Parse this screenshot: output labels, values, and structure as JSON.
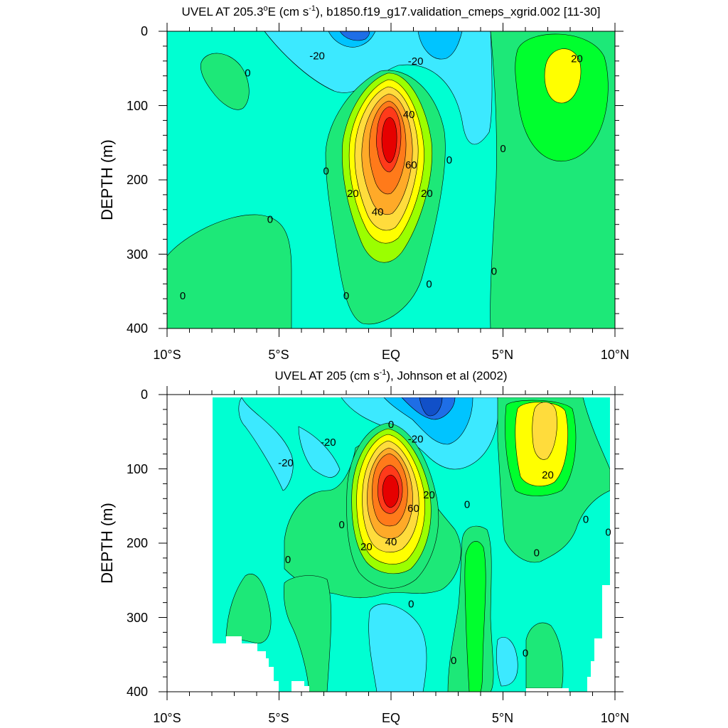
{
  "chart_data": [
    {
      "type": "contour",
      "title": "UVEL AT 205.3°E (cm s-1), b1850.f19_g17.validation_cmeps_xgrid.002 [11-30]",
      "title_parts": {
        "pre": "UVEL AT 205.3",
        "sup1": "o",
        "mid": "E (cm s",
        "sup2": "-1",
        "post": "), b1850.f19_g17.validation_cmeps_xgrid.002 [11-30]"
      },
      "ylabel": "DEPTH (m)",
      "xlabel": "",
      "xlim": [
        -10,
        10
      ],
      "ylim": [
        400,
        0
      ],
      "y_ticks": [
        "0",
        "100",
        "200",
        "300",
        "400"
      ],
      "x_ticks": [
        "10°S",
        "5°S",
        "EQ",
        "5°N",
        "10°N"
      ],
      "contour_labels": [
        {
          "text": "-20",
          "lon": -3.3,
          "depth": 33
        },
        {
          "text": "-20",
          "lon": 1.1,
          "depth": 40
        },
        {
          "text": "0",
          "lon": -6.4,
          "depth": 56
        },
        {
          "text": "20",
          "lon": 8.3,
          "depth": 37
        },
        {
          "text": "40",
          "lon": 0.8,
          "depth": 112
        },
        {
          "text": "60",
          "lon": 0.9,
          "depth": 180
        },
        {
          "text": "0",
          "lon": 5.0,
          "depth": 158
        },
        {
          "text": "0",
          "lon": 2.6,
          "depth": 173
        },
        {
          "text": "0",
          "lon": -2.9,
          "depth": 188
        },
        {
          "text": "20",
          "lon": -1.7,
          "depth": 218
        },
        {
          "text": "20",
          "lon": 1.6,
          "depth": 218
        },
        {
          "text": "40",
          "lon": -0.6,
          "depth": 243
        },
        {
          "text": "0",
          "lon": -5.4,
          "depth": 253
        },
        {
          "text": "0",
          "lon": 4.6,
          "depth": 323
        },
        {
          "text": "0",
          "lon": 1.7,
          "depth": 340
        },
        {
          "text": "0",
          "lon": -2.0,
          "depth": 356
        },
        {
          "text": "0",
          "lon": -9.3,
          "depth": 356
        }
      ],
      "colors": [
        "#1e6ee6",
        "#00c4ff",
        "#3ce9ff",
        "#00ffd2",
        "#1de878",
        "#00ff2e",
        "#9bff00",
        "#ffff00",
        "#ffdc3c",
        "#ffaa28",
        "#ff7a1a",
        "#ff3a1a",
        "#e60000"
      ]
    },
    {
      "type": "contour",
      "title": "UVEL AT 205 (cm s-1), Johnson et al (2002)",
      "title_parts": {
        "pre": "UVEL AT 205 (cm s",
        "sup": "-1",
        "post": "), Johnson et al (2002)"
      },
      "ylabel": "DEPTH (m)",
      "xlabel": "",
      "xlim": [
        -10,
        10
      ],
      "ylim": [
        400,
        0
      ],
      "y_ticks": [
        "0",
        "100",
        "200",
        "300",
        "400"
      ],
      "x_ticks": [
        "10°S",
        "5°S",
        "EQ",
        "5°N",
        "10°N"
      ],
      "contour_labels": [
        {
          "text": "0",
          "lon": -0.0,
          "depth": 40
        },
        {
          "text": "-20",
          "lon": 1.1,
          "depth": 60
        },
        {
          "text": "-20",
          "lon": -2.8,
          "depth": 64
        },
        {
          "text": "-20",
          "lon": -4.7,
          "depth": 92
        },
        {
          "text": "20",
          "lon": 7.0,
          "depth": 108
        },
        {
          "text": "20",
          "lon": 1.7,
          "depth": 135
        },
        {
          "text": "0",
          "lon": 3.4,
          "depth": 148
        },
        {
          "text": "60",
          "lon": 1.0,
          "depth": 153
        },
        {
          "text": "0",
          "lon": 8.7,
          "depth": 168
        },
        {
          "text": "0",
          "lon": -2.2,
          "depth": 175
        },
        {
          "text": "0",
          "lon": 9.7,
          "depth": 185
        },
        {
          "text": "20",
          "lon": -1.1,
          "depth": 205
        },
        {
          "text": "40",
          "lon": 0.0,
          "depth": 198
        },
        {
          "text": "0",
          "lon": 6.5,
          "depth": 213
        },
        {
          "text": "0",
          "lon": -4.6,
          "depth": 222
        },
        {
          "text": "0",
          "lon": 0.9,
          "depth": 282
        },
        {
          "text": "0",
          "lon": 6.0,
          "depth": 348
        },
        {
          "text": "0",
          "lon": 2.8,
          "depth": 358
        }
      ]
    }
  ]
}
